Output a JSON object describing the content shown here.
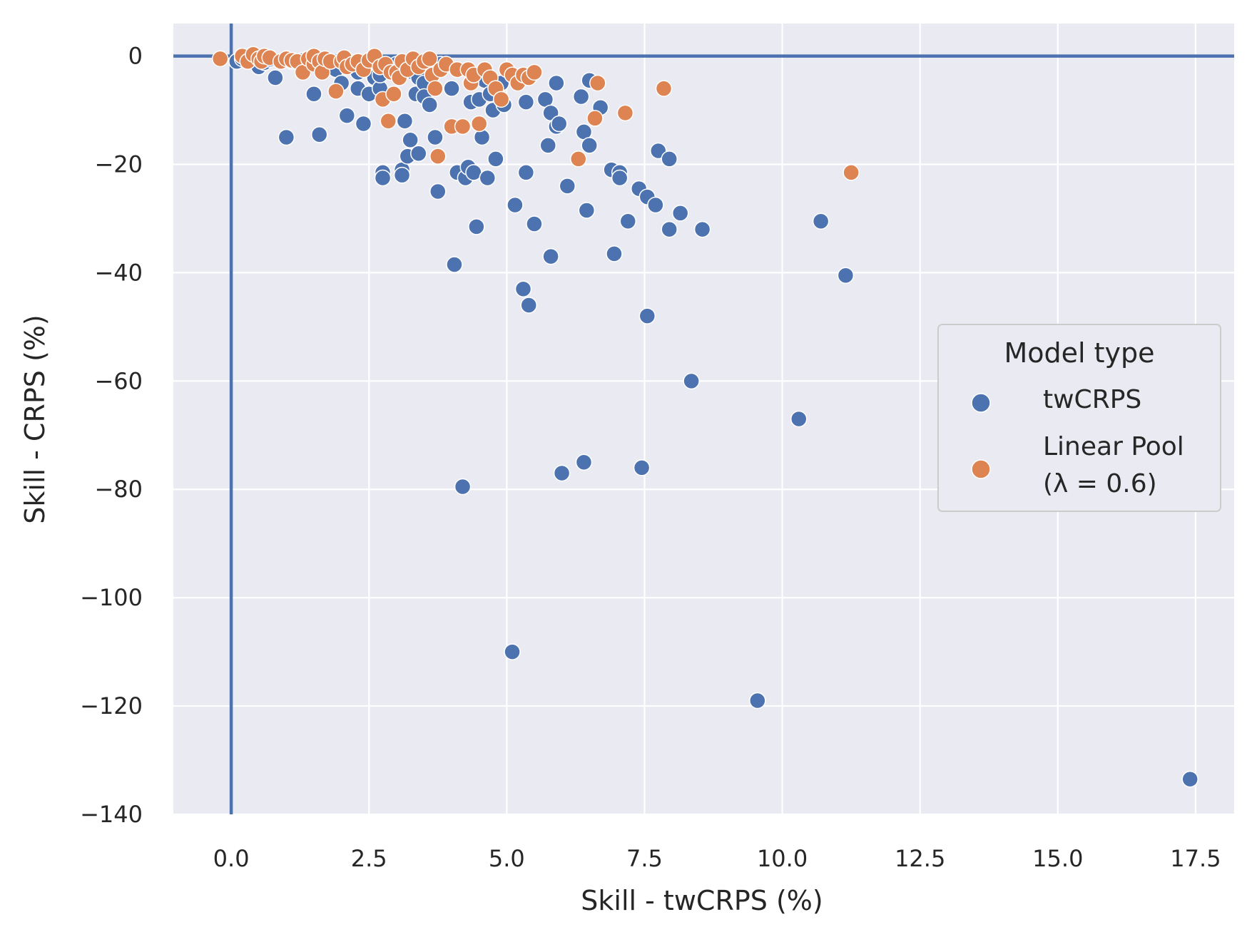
{
  "chart_data": {
    "type": "scatter",
    "xlabel": "Skill - twCRPS (%)",
    "ylabel": "Skill - CRPS (%)",
    "xlim": [
      -1.05,
      18.2
    ],
    "ylim": [
      -140,
      6
    ],
    "xticks": [
      0.0,
      2.5,
      5.0,
      7.5,
      10.0,
      12.5,
      15.0,
      17.5
    ],
    "xtick_labels": [
      "0.0",
      "2.5",
      "5.0",
      "7.5",
      "10.0",
      "12.5",
      "15.0",
      "17.5"
    ],
    "yticks": [
      0,
      -20,
      -40,
      -60,
      -80,
      -100,
      -120,
      -140
    ],
    "ytick_labels": [
      "0",
      "−20",
      "−40",
      "−60",
      "−80",
      "−100",
      "−120",
      "−140"
    ],
    "grid": true,
    "reference_lines": {
      "x": 0,
      "y": 0,
      "color": "#4c72b0"
    },
    "legend": {
      "title": "Model type",
      "placement": "center-right",
      "entries": [
        {
          "label": "twCRPS",
          "color": "#4c72b0"
        },
        {
          "label_line1": "Linear Pool",
          "label_line2": "(λ = 0.6)",
          "color": "#dd8452"
        }
      ]
    },
    "series": [
      {
        "name": "twCRPS",
        "color": "#4c72b0",
        "points": [
          [
            0.1,
            -1.0
          ],
          [
            0.2,
            -0.5
          ],
          [
            0.3,
            -0.8
          ],
          [
            0.5,
            -1.5
          ],
          [
            0.5,
            -2.0
          ],
          [
            0.6,
            -1.2
          ],
          [
            0.7,
            -0.6
          ],
          [
            0.8,
            -4.0
          ],
          [
            1.0,
            -15.0
          ],
          [
            1.1,
            -1.0
          ],
          [
            1.3,
            -0.8
          ],
          [
            1.5,
            -7.0
          ],
          [
            1.6,
            -14.5
          ],
          [
            1.7,
            -1.5
          ],
          [
            1.9,
            -2.5
          ],
          [
            2.0,
            -5.0
          ],
          [
            2.1,
            -11.0
          ],
          [
            2.2,
            -1.2
          ],
          [
            2.3,
            -3.0
          ],
          [
            2.3,
            -6.0
          ],
          [
            2.4,
            -12.5
          ],
          [
            2.5,
            -7.0
          ],
          [
            2.6,
            -4.0
          ],
          [
            2.7,
            -6.0
          ],
          [
            2.7,
            -3.5
          ],
          [
            2.75,
            -21.5
          ],
          [
            2.75,
            -22.5
          ],
          [
            3.0,
            -1.5
          ],
          [
            3.1,
            -21.0
          ],
          [
            3.1,
            -22.0
          ],
          [
            3.15,
            -12.0
          ],
          [
            3.2,
            -18.5
          ],
          [
            3.25,
            -15.5
          ],
          [
            3.3,
            -3.0
          ],
          [
            3.35,
            -7.0
          ],
          [
            3.4,
            -18.0
          ],
          [
            3.4,
            -4.0
          ],
          [
            3.5,
            -5.0
          ],
          [
            3.5,
            -7.5
          ],
          [
            3.6,
            -9.0
          ],
          [
            3.7,
            -15.0
          ],
          [
            3.75,
            -25.0
          ],
          [
            3.8,
            -1.5
          ],
          [
            4.0,
            -6.0
          ],
          [
            4.05,
            -38.5
          ],
          [
            4.1,
            -21.5
          ],
          [
            4.2,
            -79.5
          ],
          [
            4.25,
            -22.5
          ],
          [
            4.3,
            -20.5
          ],
          [
            4.35,
            -8.5
          ],
          [
            4.4,
            -21.5
          ],
          [
            4.45,
            -31.5
          ],
          [
            4.5,
            -8.0
          ],
          [
            4.55,
            -15.0
          ],
          [
            4.6,
            -4.5
          ],
          [
            4.65,
            -22.5
          ],
          [
            4.7,
            -7.0
          ],
          [
            4.75,
            -10.0
          ],
          [
            4.8,
            -19.0
          ],
          [
            4.9,
            -5.0
          ],
          [
            4.95,
            -9.0
          ],
          [
            5.1,
            -110.0
          ],
          [
            5.15,
            -27.5
          ],
          [
            5.3,
            -43.0
          ],
          [
            5.35,
            -8.5
          ],
          [
            5.35,
            -21.5
          ],
          [
            5.4,
            -46.0
          ],
          [
            5.5,
            -31.0
          ],
          [
            5.7,
            -8.0
          ],
          [
            5.75,
            -16.5
          ],
          [
            5.8,
            -10.5
          ],
          [
            5.8,
            -37.0
          ],
          [
            5.9,
            -5.0
          ],
          [
            5.9,
            -13.0
          ],
          [
            5.95,
            -12.5
          ],
          [
            6.0,
            -77.0
          ],
          [
            6.1,
            -24.0
          ],
          [
            6.35,
            -7.5
          ],
          [
            6.4,
            -14.0
          ],
          [
            6.4,
            -75.0
          ],
          [
            6.45,
            -28.5
          ],
          [
            6.5,
            -16.5
          ],
          [
            6.5,
            -4.5
          ],
          [
            6.7,
            -9.5
          ],
          [
            6.9,
            -21.0
          ],
          [
            6.95,
            -36.5
          ],
          [
            7.05,
            -21.5
          ],
          [
            7.05,
            -22.5
          ],
          [
            7.2,
            -30.5
          ],
          [
            7.4,
            -24.5
          ],
          [
            7.45,
            -76.0
          ],
          [
            7.55,
            -26.0
          ],
          [
            7.55,
            -48.0
          ],
          [
            7.7,
            -27.5
          ],
          [
            7.75,
            -17.5
          ],
          [
            7.95,
            -32.0
          ],
          [
            7.95,
            -19.0
          ],
          [
            8.15,
            -29.0
          ],
          [
            8.35,
            -60.0
          ],
          [
            8.55,
            -32.0
          ],
          [
            9.55,
            -119.0
          ],
          [
            10.3,
            -67.0
          ],
          [
            10.7,
            -30.5
          ],
          [
            11.15,
            -40.5
          ],
          [
            17.4,
            -133.5
          ]
        ]
      },
      {
        "name": "Linear Pool (λ = 0.6)",
        "color": "#dd8452",
        "points": [
          [
            -0.2,
            -0.5
          ],
          [
            0.2,
            0.0
          ],
          [
            0.3,
            -1.0
          ],
          [
            0.4,
            0.3
          ],
          [
            0.5,
            -0.5
          ],
          [
            0.55,
            -1.0
          ],
          [
            0.6,
            0.0
          ],
          [
            0.7,
            -0.3
          ],
          [
            0.9,
            -1.0
          ],
          [
            1.0,
            -0.5
          ],
          [
            1.1,
            -0.8
          ],
          [
            1.2,
            -1.0
          ],
          [
            1.3,
            -3.0
          ],
          [
            1.4,
            -0.5
          ],
          [
            1.5,
            -1.5
          ],
          [
            1.5,
            0.0
          ],
          [
            1.6,
            -1.0
          ],
          [
            1.65,
            -3.0
          ],
          [
            1.7,
            -0.5
          ],
          [
            1.8,
            -1.0
          ],
          [
            1.9,
            -6.5
          ],
          [
            2.0,
            -1.0
          ],
          [
            2.05,
            -0.3
          ],
          [
            2.1,
            -2.0
          ],
          [
            2.2,
            -1.5
          ],
          [
            2.3,
            -1.0
          ],
          [
            2.4,
            -2.5
          ],
          [
            2.5,
            -0.8
          ],
          [
            2.6,
            0.0
          ],
          [
            2.7,
            -2.0
          ],
          [
            2.75,
            -8.0
          ],
          [
            2.8,
            -1.5
          ],
          [
            2.85,
            -12.0
          ],
          [
            2.9,
            -3.0
          ],
          [
            2.95,
            -7.0
          ],
          [
            3.0,
            -3.0
          ],
          [
            3.05,
            -4.0
          ],
          [
            3.1,
            -1.0
          ],
          [
            3.2,
            -2.5
          ],
          [
            3.3,
            -0.5
          ],
          [
            3.4,
            -2.0
          ],
          [
            3.5,
            -1.0
          ],
          [
            3.6,
            -0.5
          ],
          [
            3.65,
            -3.5
          ],
          [
            3.7,
            -6.0
          ],
          [
            3.75,
            -18.5
          ],
          [
            3.8,
            -2.5
          ],
          [
            3.9,
            -1.5
          ],
          [
            4.0,
            -13.0
          ],
          [
            4.1,
            -2.5
          ],
          [
            4.2,
            -13.0
          ],
          [
            4.3,
            -2.5
          ],
          [
            4.35,
            -5.0
          ],
          [
            4.4,
            -3.5
          ],
          [
            4.5,
            -12.5
          ],
          [
            4.6,
            -2.5
          ],
          [
            4.7,
            -4.0
          ],
          [
            4.8,
            -6.0
          ],
          [
            4.9,
            -8.0
          ],
          [
            5.0,
            -2.5
          ],
          [
            5.1,
            -3.5
          ],
          [
            5.2,
            -5.0
          ],
          [
            5.3,
            -3.5
          ],
          [
            5.4,
            -4.0
          ],
          [
            5.5,
            -3.0
          ],
          [
            6.3,
            -19.0
          ],
          [
            6.6,
            -11.5
          ],
          [
            6.65,
            -5.0
          ],
          [
            7.15,
            -10.5
          ],
          [
            7.85,
            -6.0
          ],
          [
            11.25,
            -21.5
          ]
        ]
      }
    ]
  }
}
